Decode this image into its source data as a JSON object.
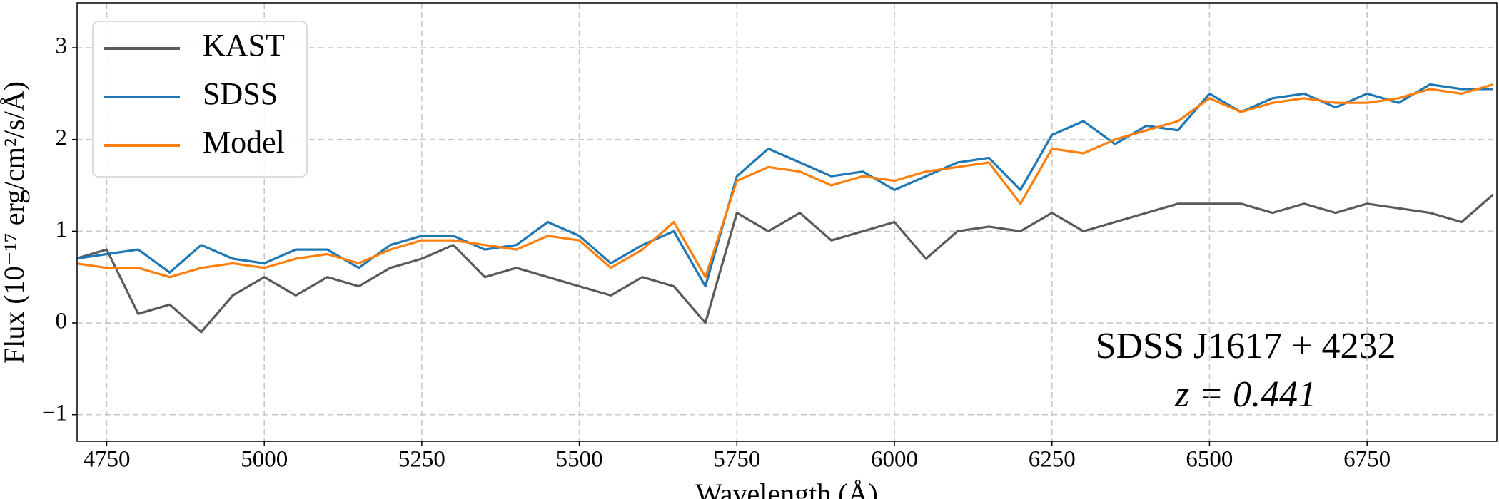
{
  "chart_data": {
    "type": "line",
    "xlabel": "Wavelength (Å)",
    "ylabel": "Flux (10⁻¹⁷ erg/cm²/s/Å)",
    "annotations": [
      "SDSS J1617 + 4232",
      "z = 0.441"
    ],
    "x": [
      4700,
      4750,
      4800,
      4850,
      4900,
      4950,
      5000,
      5050,
      5100,
      5150,
      5200,
      5250,
      5300,
      5350,
      5400,
      5450,
      5500,
      5550,
      5600,
      5650,
      5700,
      5750,
      5800,
      5850,
      5900,
      5950,
      6000,
      6050,
      6100,
      6150,
      6200,
      6250,
      6300,
      6350,
      6400,
      6450,
      6500,
      6550,
      6600,
      6650,
      6700,
      6750,
      6800,
      6850,
      6900,
      6950
    ],
    "series": [
      {
        "name": "KAST",
        "color": "#5a5a5a",
        "values": [
          0.7,
          0.8,
          0.1,
          0.2,
          -0.1,
          0.3,
          0.5,
          0.3,
          0.5,
          0.4,
          0.6,
          0.7,
          0.85,
          0.5,
          0.6,
          0.5,
          0.4,
          0.3,
          0.5,
          0.4,
          0.0,
          1.2,
          1.0,
          1.2,
          0.9,
          1.0,
          1.1,
          0.7,
          1.0,
          1.05,
          1.0,
          1.2,
          1.0,
          1.1,
          1.2,
          1.3,
          1.3,
          1.3,
          1.2,
          1.3,
          1.2,
          1.3,
          1.25,
          1.2,
          1.1,
          1.4
        ]
      },
      {
        "name": "SDSS",
        "color": "#1f77b4",
        "values": [
          0.7,
          0.75,
          0.8,
          0.55,
          0.85,
          0.7,
          0.65,
          0.8,
          0.8,
          0.6,
          0.85,
          0.95,
          0.95,
          0.8,
          0.85,
          1.1,
          0.95,
          0.65,
          0.85,
          1.0,
          0.4,
          1.6,
          1.9,
          1.75,
          1.6,
          1.65,
          1.45,
          1.6,
          1.75,
          1.8,
          1.45,
          2.05,
          2.2,
          1.95,
          2.15,
          2.1,
          2.5,
          2.3,
          2.45,
          2.5,
          2.35,
          2.5,
          2.4,
          2.6,
          2.55,
          2.55
        ]
      },
      {
        "name": "Model",
        "color": "#ff7f0e",
        "values": [
          0.65,
          0.6,
          0.6,
          0.5,
          0.6,
          0.65,
          0.6,
          0.7,
          0.75,
          0.65,
          0.8,
          0.9,
          0.9,
          0.85,
          0.8,
          0.95,
          0.9,
          0.6,
          0.8,
          1.1,
          0.5,
          1.55,
          1.7,
          1.65,
          1.5,
          1.6,
          1.55,
          1.65,
          1.7,
          1.75,
          1.3,
          1.9,
          1.85,
          2.0,
          2.1,
          2.2,
          2.45,
          2.3,
          2.4,
          2.45,
          2.4,
          2.4,
          2.45,
          2.55,
          2.5,
          2.6
        ]
      }
    ],
    "xlim": [
      4703,
      6956
    ],
    "xticks": [
      4750,
      5000,
      5250,
      5500,
      5750,
      6000,
      6250,
      6500,
      6750
    ],
    "ylim": [
      -1.29,
      3.49
    ],
    "yticks": [
      {
        "value": -1,
        "label": "−1"
      },
      0,
      1,
      2,
      3
    ],
    "grid": true,
    "legend": "upper-left"
  }
}
